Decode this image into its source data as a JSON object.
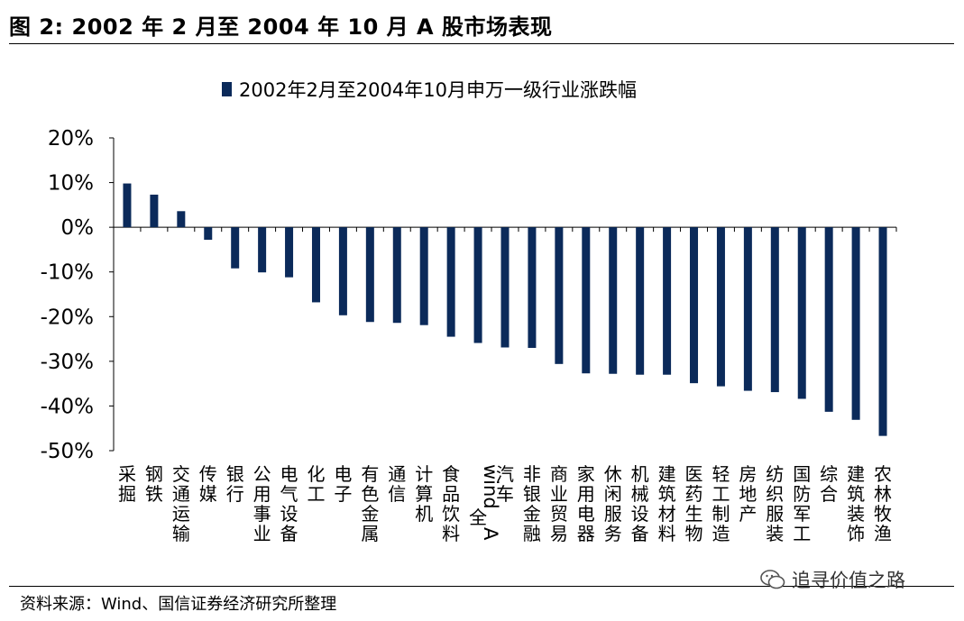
{
  "figure": {
    "title": "图 2:  2002 年 2 月至 2004 年 10 月 A 股市场表现",
    "source": "资料来源：Wind、国信证券经济研究所整理",
    "watermark": "追寻价值之路",
    "watermark_icon": "wechat-icon"
  },
  "chart_data": {
    "type": "bar",
    "legend": "2002年2月至2004年10月申万一级行业涨跌幅",
    "bar_color": "#0b2a5a",
    "ylim": [
      -50,
      20
    ],
    "yticks": [
      20,
      10,
      0,
      -10,
      -20,
      -30,
      -40,
      -50
    ],
    "ytick_labels": [
      "20%",
      "10%",
      "0%",
      "-10%",
      "-20%",
      "-30%",
      "-40%",
      "-50%"
    ],
    "categories": [
      "采掘",
      "钢铁",
      "交通运输",
      "传媒",
      "银行",
      "公用事业",
      "电气设备",
      "化工",
      "电子",
      "有色金属",
      "通信",
      "计算机",
      "食品饮料",
      "wind全A",
      "汽车",
      "非银金融",
      "商业贸易",
      "家用电器",
      "休闲服务",
      "机械设备",
      "建筑材料",
      "医药生物",
      "轻工制造",
      "房地产",
      "纺织服装",
      "国防军工",
      "综合",
      "建筑装饰",
      "农林牧渔"
    ],
    "values": [
      9.8,
      7.3,
      3.6,
      -2.8,
      -9.2,
      -10.1,
      -11.2,
      -16.8,
      -19.7,
      -21.2,
      -21.4,
      -21.9,
      -24.5,
      -25.9,
      -26.9,
      -27.0,
      -30.6,
      -32.7,
      -32.8,
      -33.0,
      -33.0,
      -34.9,
      -35.6,
      -36.6,
      -36.9,
      -38.4,
      -41.3,
      -43.1,
      -46.7
    ],
    "grid": false,
    "legend_position": "top"
  }
}
